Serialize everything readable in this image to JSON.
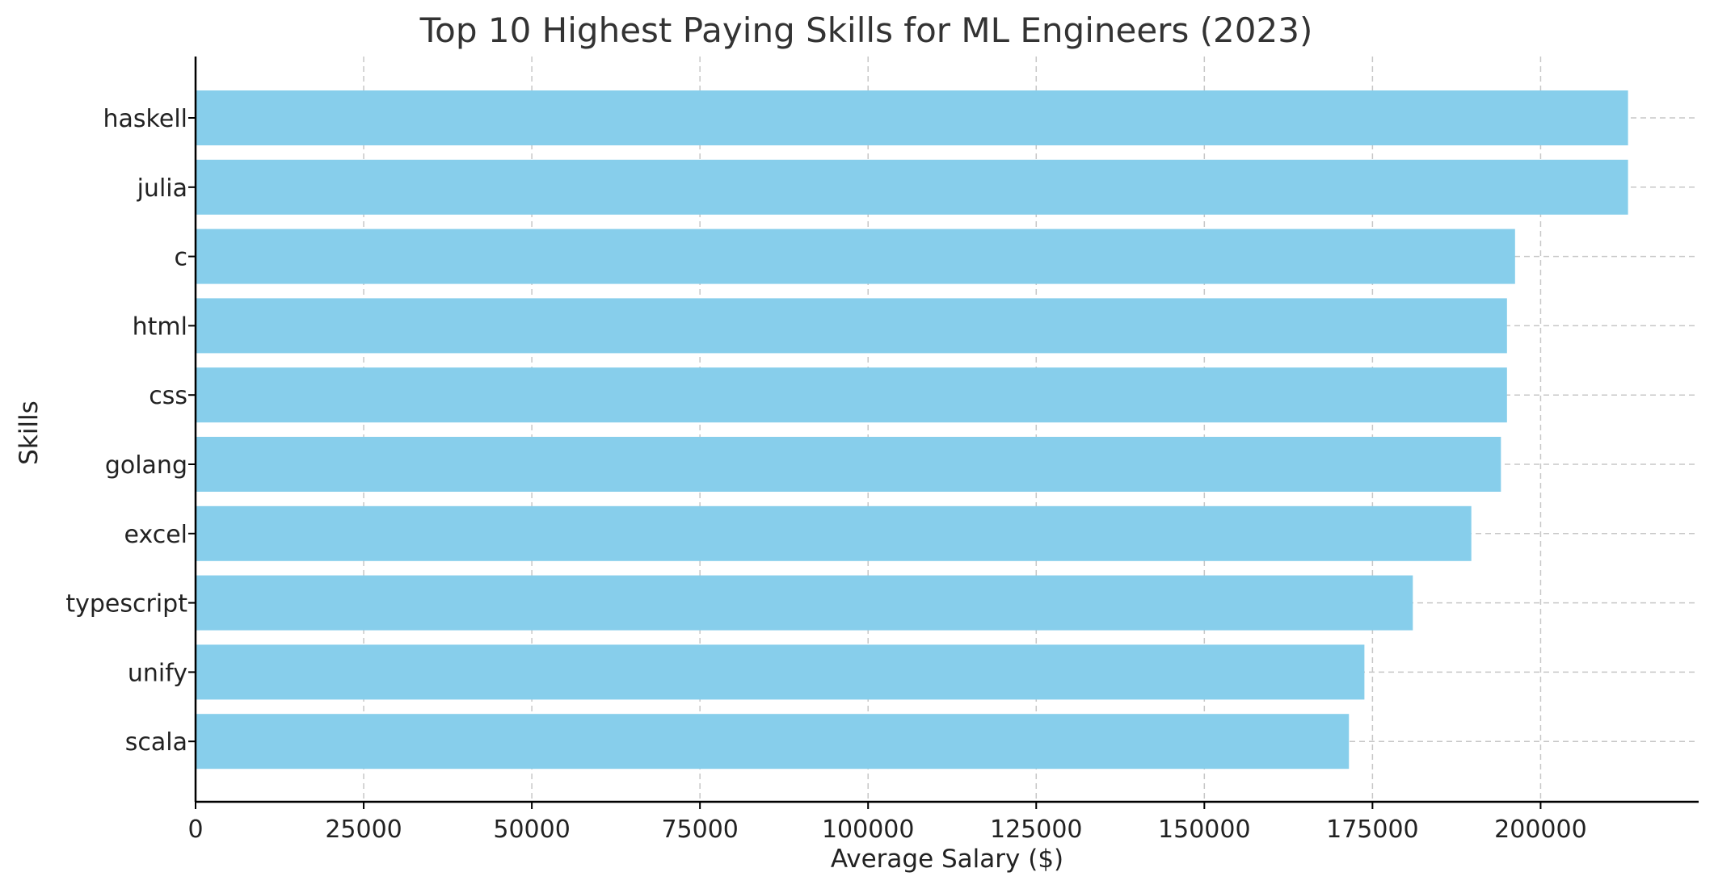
{
  "chart_data": {
    "type": "bar",
    "orientation": "horizontal",
    "title": "Top 10 Highest Paying Skills for ML Engineers (2023)",
    "xlabel": "Average Salary ($)",
    "ylabel": "Skills",
    "categories": [
      "haskell",
      "julia",
      "c",
      "html",
      "css",
      "golang",
      "excel",
      "typescript",
      "unify",
      "scala"
    ],
    "values": [
      213000,
      213000,
      196200,
      195000,
      195000,
      194100,
      189700,
      181000,
      173800,
      171500
    ],
    "xlim": [
      0,
      223500
    ],
    "xticks": [
      0,
      25000,
      50000,
      75000,
      100000,
      125000,
      150000,
      175000,
      200000
    ],
    "grid": true,
    "bar_color": "#87CEEB"
  }
}
